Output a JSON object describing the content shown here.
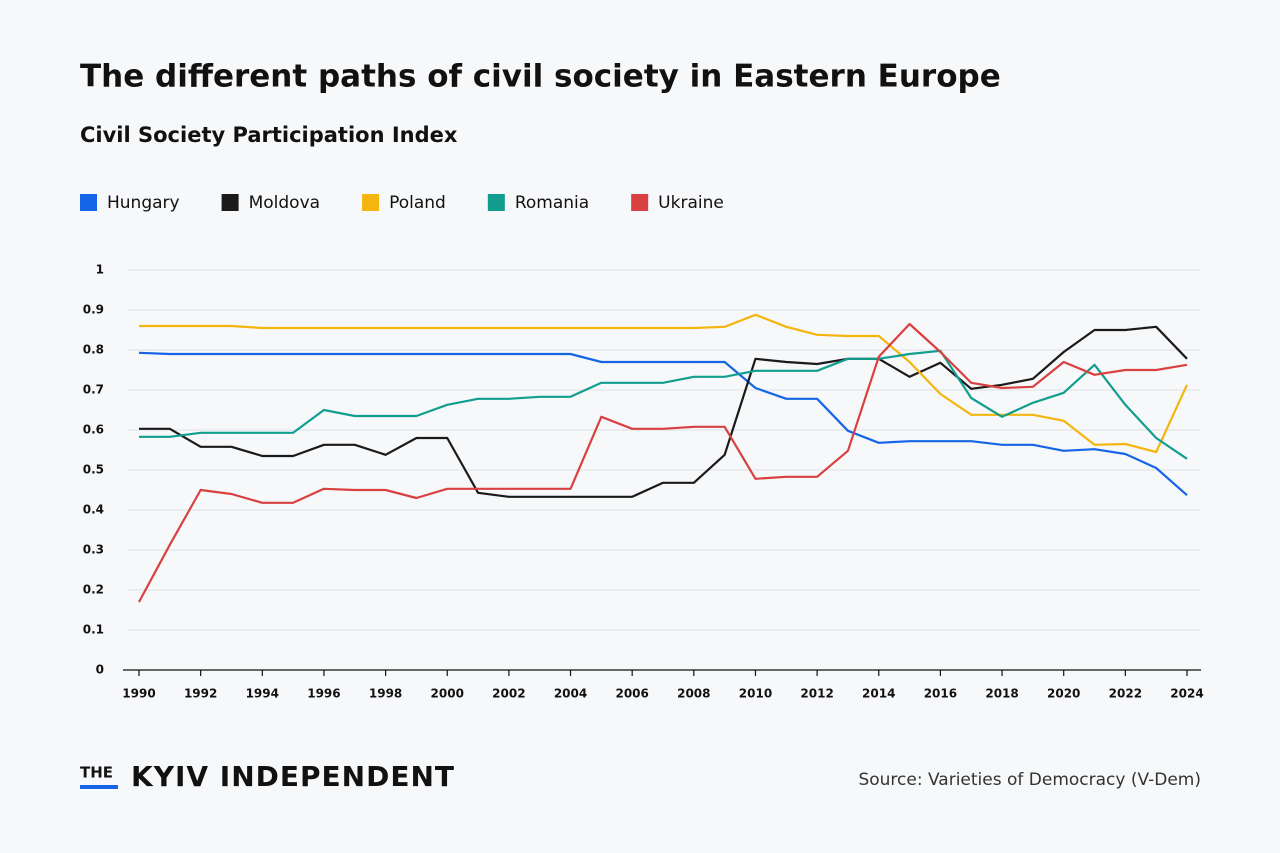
{
  "chart_data": {
    "type": "line",
    "title": "The different paths of civil society in Eastern Europe",
    "subtitle": "Civil Society Participation Index",
    "source": "Source: Varieties of Democracy (V-Dem)",
    "brand": {
      "small": "THE",
      "main": "KYIV INDEPENDENT"
    },
    "x": [
      1990,
      1991,
      1992,
      1993,
      1994,
      1995,
      1996,
      1997,
      1998,
      1999,
      2000,
      2001,
      2002,
      2003,
      2004,
      2005,
      2006,
      2007,
      2008,
      2009,
      2010,
      2011,
      2012,
      2013,
      2014,
      2015,
      2016,
      2017,
      2018,
      2019,
      2020,
      2021,
      2022,
      2023,
      2024
    ],
    "xlim": [
      1990,
      2024
    ],
    "xticks": [
      1990,
      1992,
      1994,
      1996,
      1998,
      2000,
      2002,
      2004,
      2006,
      2008,
      2010,
      2012,
      2014,
      2016,
      2018,
      2020,
      2022,
      2024
    ],
    "ylim": [
      0,
      1
    ],
    "yticks": [
      0,
      0.1,
      0.2,
      0.3,
      0.4,
      0.5,
      0.6,
      0.7,
      0.8,
      0.9,
      1
    ],
    "grid": true,
    "series": [
      {
        "name": "Hungary",
        "color": "#1565e6",
        "values": [
          0.793,
          0.79,
          0.79,
          0.79,
          0.79,
          0.79,
          0.79,
          0.79,
          0.79,
          0.79,
          0.79,
          0.79,
          0.79,
          0.79,
          0.79,
          0.77,
          0.77,
          0.77,
          0.77,
          0.77,
          0.705,
          0.678,
          0.678,
          0.598,
          0.568,
          0.572,
          0.572,
          0.572,
          0.563,
          0.563,
          0.548,
          0.552,
          0.54,
          0.505,
          0.437
        ]
      },
      {
        "name": "Moldova",
        "color": "#1a1a1a",
        "values": [
          0.603,
          0.603,
          0.558,
          0.558,
          0.535,
          0.535,
          0.563,
          0.563,
          0.538,
          0.58,
          0.58,
          0.443,
          0.433,
          0.433,
          0.433,
          0.433,
          0.433,
          0.468,
          0.468,
          0.538,
          0.778,
          0.77,
          0.765,
          0.778,
          0.778,
          0.733,
          0.768,
          0.703,
          0.713,
          0.728,
          0.795,
          0.85,
          0.85,
          0.858,
          0.778
        ]
      },
      {
        "name": "Poland",
        "color": "#f5b50f",
        "values": [
          0.86,
          0.86,
          0.86,
          0.86,
          0.855,
          0.855,
          0.855,
          0.855,
          0.855,
          0.855,
          0.855,
          0.855,
          0.855,
          0.855,
          0.855,
          0.855,
          0.855,
          0.855,
          0.855,
          0.858,
          0.888,
          0.858,
          0.838,
          0.835,
          0.835,
          0.77,
          0.69,
          0.638,
          0.638,
          0.638,
          0.623,
          0.563,
          0.565,
          0.545,
          0.713
        ]
      },
      {
        "name": "Romania",
        "color": "#129e8f",
        "values": [
          0.583,
          0.583,
          0.593,
          0.593,
          0.593,
          0.593,
          0.65,
          0.635,
          0.635,
          0.635,
          0.663,
          0.678,
          0.678,
          0.683,
          0.683,
          0.718,
          0.718,
          0.718,
          0.733,
          0.733,
          0.748,
          0.748,
          0.748,
          0.778,
          0.778,
          0.79,
          0.798,
          0.68,
          0.633,
          0.668,
          0.693,
          0.763,
          0.663,
          0.58,
          0.528
        ]
      },
      {
        "name": "Ukraine",
        "color": "#d94040",
        "values": [
          0.17,
          0.313,
          0.45,
          0.44,
          0.418,
          0.418,
          0.453,
          0.45,
          0.45,
          0.43,
          0.453,
          0.453,
          0.453,
          0.453,
          0.453,
          0.633,
          0.603,
          0.603,
          0.608,
          0.608,
          0.478,
          0.483,
          0.483,
          0.548,
          0.783,
          0.865,
          0.795,
          0.718,
          0.705,
          0.708,
          0.77,
          0.738,
          0.75,
          0.75,
          0.763
        ]
      }
    ]
  }
}
